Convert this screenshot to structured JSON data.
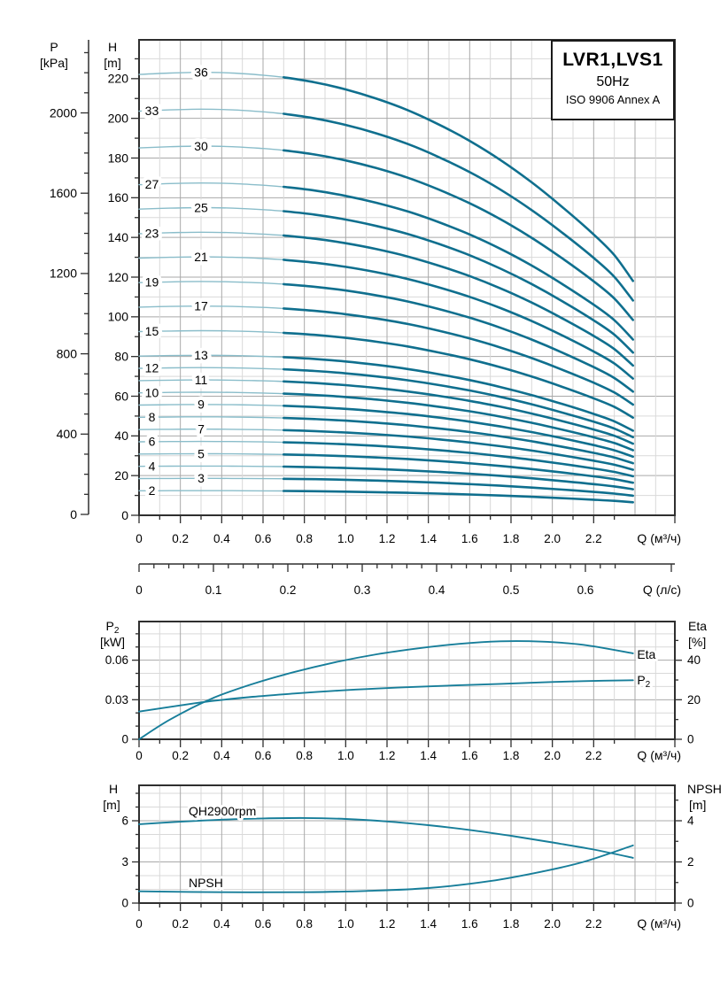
{
  "title_box": {
    "model": "LVR1,LVS1",
    "frequency": "50Hz",
    "standard": "ISO 9906 Annex A"
  },
  "colors": {
    "curve_thick": "#0f6f8e",
    "curve_thin": "#8abdca",
    "curve_mid": "#177e9a",
    "grid_minor": "#d9d9d9",
    "grid_major": "#a9a9a9",
    "frame": "#2f2f2f",
    "text": "#000000",
    "background": "#ffffff"
  },
  "chart_data": [
    {
      "id": "qh-multistage",
      "type": "line",
      "title": "LVR1,LVS1 50Hz ISO 9906 Annex A",
      "x_axis": {
        "label": "Q (м³/ч)",
        "tick_labels": [
          "0",
          "0.2",
          "0.4",
          "0.6",
          "0.8",
          "1.0",
          "1.2",
          "1.4",
          "1.6",
          "1.8",
          "2.0",
          "2.2"
        ],
        "minor_step": 0.1,
        "range": [
          0,
          2.59
        ]
      },
      "x_axis_secondary": {
        "label": "Q (л/с)",
        "tick_labels": [
          "0",
          "0.1",
          "0.2",
          "0.3",
          "0.4",
          "0.5",
          "0.6"
        ],
        "minor_step": 0.02,
        "m3h_per_unit": 3.6
      },
      "y_axis_left": {
        "label": "H",
        "unit": "[m]",
        "tick_labels": [
          "0",
          "20",
          "40",
          "60",
          "80",
          "100",
          "120",
          "140",
          "160",
          "180",
          "200",
          "220"
        ],
        "minor_step": 10,
        "range": [
          0,
          239
        ]
      },
      "y_axis_far_left": {
        "label": "P",
        "unit": "[kPa]",
        "tick_labels": [
          "0",
          "400",
          "800",
          "1200",
          "1600",
          "2000"
        ],
        "minor_step": 100,
        "range": [
          0,
          2380
        ]
      },
      "grid": true,
      "curves_q": [
        0,
        0.15,
        0.3,
        0.45,
        0.6,
        0.7,
        0.85,
        1.0,
        1.15,
        1.3,
        1.45,
        1.6,
        1.75,
        1.9,
        2.05,
        2.2,
        2.3,
        2.39
      ],
      "unit_head_m": [
        6.17,
        6.19,
        6.2,
        6.19,
        6.16,
        6.13,
        6.06,
        5.96,
        5.83,
        5.67,
        5.47,
        5.24,
        4.97,
        4.66,
        4.31,
        3.93,
        3.64,
        3.28
      ],
      "thin_until_q": 0.7,
      "label_q": {
        "right": 0.3,
        "left": 0.062
      },
      "stages": [
        {
          "n": 36,
          "label_col": "right"
        },
        {
          "n": 33,
          "label_col": "left"
        },
        {
          "n": 30,
          "label_col": "right"
        },
        {
          "n": 27,
          "label_col": "left"
        },
        {
          "n": 25,
          "label_col": "right"
        },
        {
          "n": 23,
          "label_col": "left"
        },
        {
          "n": 21,
          "label_col": "right"
        },
        {
          "n": 19,
          "label_col": "left"
        },
        {
          "n": 17,
          "label_col": "right"
        },
        {
          "n": 15,
          "label_col": "left"
        },
        {
          "n": 13,
          "label_col": "right"
        },
        {
          "n": 12,
          "label_col": "left"
        },
        {
          "n": 11,
          "label_col": "right"
        },
        {
          "n": 10,
          "label_col": "left"
        },
        {
          "n": 9,
          "label_col": "right"
        },
        {
          "n": 8,
          "label_col": "left"
        },
        {
          "n": 7,
          "label_col": "right"
        },
        {
          "n": 6,
          "label_col": "left"
        },
        {
          "n": 5,
          "label_col": "right"
        },
        {
          "n": 4,
          "label_col": "left"
        },
        {
          "n": 3,
          "label_col": "right"
        },
        {
          "n": 2,
          "label_col": "left"
        }
      ]
    },
    {
      "id": "p2-eta",
      "type": "line",
      "x_axis": {
        "label": "Q (м³/ч)",
        "tick_labels": [
          "0",
          "0.2",
          "0.4",
          "0.6",
          "0.8",
          "1.0",
          "1.2",
          "1.4",
          "1.6",
          "1.8",
          "2.0",
          "2.2"
        ],
        "minor_step": 0.1,
        "range": [
          0,
          2.59
        ]
      },
      "y_axis_left": {
        "label": "P",
        "label_sub": "2",
        "unit": "[kW]",
        "tick_labels": [
          "0",
          "0.03",
          "0.06"
        ],
        "minor_step": 0.01,
        "range": [
          0,
          0.089
        ]
      },
      "y_axis_right": {
        "label": "Eta",
        "unit": "[%]",
        "tick_labels": [
          "0",
          "20",
          "40"
        ],
        "minor_step": 10,
        "range": [
          0,
          59.5
        ]
      },
      "grid": true,
      "series": [
        {
          "name": "Eta",
          "axis": "right",
          "label": "Eta",
          "points": [
            [
              0,
              0
            ],
            [
              0.15,
              10
            ],
            [
              0.35,
              20.5
            ],
            [
              0.55,
              28
            ],
            [
              0.75,
              34
            ],
            [
              0.95,
              39
            ],
            [
              1.15,
              43
            ],
            [
              1.35,
              46
            ],
            [
              1.55,
              48.3
            ],
            [
              1.75,
              49.6
            ],
            [
              1.95,
              49.4
            ],
            [
              2.15,
              47.8
            ],
            [
              2.39,
              43.5
            ]
          ],
          "label_at": [
            2.41,
            40.8
          ]
        },
        {
          "name": "P2",
          "axis": "left",
          "label": "P",
          "label_sub": "2",
          "points": [
            [
              0,
              0.021
            ],
            [
              0.2,
              0.0257
            ],
            [
              0.35,
              0.029
            ],
            [
              0.55,
              0.0322
            ],
            [
              0.75,
              0.0347
            ],
            [
              0.95,
              0.0368
            ],
            [
              1.15,
              0.0385
            ],
            [
              1.35,
              0.0398
            ],
            [
              1.55,
              0.041
            ],
            [
              1.75,
              0.042
            ],
            [
              1.95,
              0.0432
            ],
            [
              2.15,
              0.0441
            ],
            [
              2.39,
              0.0448
            ]
          ],
          "label_at": [
            2.41,
            0.0416
          ]
        }
      ]
    },
    {
      "id": "qh-npsh-single-stage",
      "type": "line",
      "x_axis": {
        "label": "Q (м³/ч)",
        "tick_labels": [
          "0",
          "0.2",
          "0.4",
          "0.6",
          "0.8",
          "1.0",
          "1.2",
          "1.4",
          "1.6",
          "1.8",
          "2.0",
          "2.2"
        ],
        "minor_step": 0.1,
        "range": [
          0,
          2.59
        ]
      },
      "y_axis_left": {
        "label": "H",
        "unit": "[m]",
        "tick_labels": [
          "0",
          "3",
          "6"
        ],
        "minor_step": 1,
        "range": [
          0,
          8.58
        ]
      },
      "y_axis_right": {
        "label": "NPSH",
        "unit": "[m]",
        "tick_labels": [
          "0",
          "2",
          "4"
        ],
        "minor_step": 1,
        "range": [
          0,
          5.72
        ]
      },
      "grid": true,
      "series": [
        {
          "name": "QH2900rpm",
          "axis": "left",
          "label": "QH2900rpm",
          "points": [
            [
              0,
              5.75
            ],
            [
              0.2,
              5.93
            ],
            [
              0.4,
              6.08
            ],
            [
              0.6,
              6.17
            ],
            [
              0.8,
              6.2
            ],
            [
              1.0,
              6.13
            ],
            [
              1.2,
              5.95
            ],
            [
              1.4,
              5.68
            ],
            [
              1.6,
              5.33
            ],
            [
              1.8,
              4.9
            ],
            [
              2.0,
              4.42
            ],
            [
              2.2,
              3.9
            ],
            [
              2.39,
              3.3
            ]
          ],
          "label_at": [
            0.24,
            6.39
          ]
        },
        {
          "name": "NPSH",
          "axis": "right",
          "label": "NPSH",
          "points": [
            [
              0,
              0.57
            ],
            [
              0.4,
              0.53
            ],
            [
              0.8,
              0.53
            ],
            [
              1.1,
              0.59
            ],
            [
              1.4,
              0.73
            ],
            [
              1.7,
              1.07
            ],
            [
              1.95,
              1.53
            ],
            [
              2.15,
              2.0
            ],
            [
              2.39,
              2.8
            ]
          ],
          "label_at": [
            0.24,
            0.77
          ]
        }
      ]
    }
  ]
}
